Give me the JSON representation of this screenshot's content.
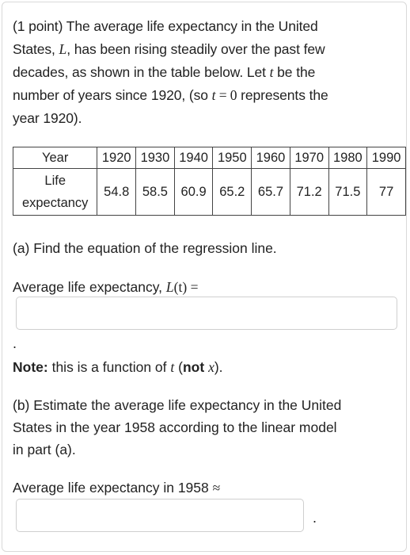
{
  "intro": {
    "l1_a": "(1 point) The average life expectancy in the United",
    "l2_a": "States, ",
    "l2_var": "L",
    "l2_b": ", has been rising steadily over the past few",
    "l3": "decades, as shown in the table below. Let ",
    "l3_var": "t",
    "l3_b": " be the",
    "l4_a": "number of years since 1920, (so ",
    "l4_var": "t",
    "l4_eq": " = 0",
    "l4_b": " represents the",
    "l5": "year 1920)."
  },
  "table": {
    "header_year": "Year",
    "header_life_1": "Life",
    "header_life_2": "expectancy",
    "years": [
      "1920",
      "1930",
      "1940",
      "1950",
      "1960",
      "1970",
      "1980",
      "1990"
    ],
    "values": [
      "54.8",
      "58.5",
      "60.9",
      "65.2",
      "65.7",
      "71.2",
      "71.5",
      "77"
    ]
  },
  "part_a": {
    "question": "(a) Find the equation of the regression line.",
    "label_a": "Average life expectancy, ",
    "label_func": "L",
    "label_arg": "(t)",
    "label_eq": " =",
    "input_value": "",
    "trailing_mark": "."
  },
  "note": {
    "bold": "Note:",
    "text_a": " this is a function of ",
    "var_t": "t",
    "text_b": " (",
    "not_bold": "not",
    "var_x": "x",
    "text_c": ")."
  },
  "part_b": {
    "line1": "(b) Estimate the average life expectancy in the United",
    "line2": "States in the year 1958 according to the linear model",
    "line3": "in part (a).",
    "label": "Average life expectancy in 1958 ",
    "approx": "≈",
    "input_value": "",
    "trailing_mark": "."
  }
}
